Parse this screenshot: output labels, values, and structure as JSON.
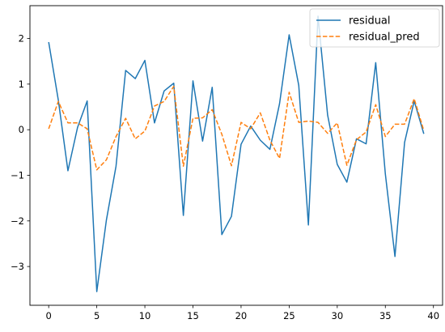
{
  "chart_data": {
    "type": "line",
    "title": "",
    "xlabel": "",
    "ylabel": "",
    "xlim": [
      -1.95,
      40.95
    ],
    "ylim": [
      -3.85,
      2.72
    ],
    "xticks": [
      0,
      5,
      10,
      15,
      20,
      25,
      30,
      35,
      40
    ],
    "yticks": [
      -3,
      -2,
      -1,
      0,
      1,
      2
    ],
    "ytick_labels": [
      "−3",
      "−2",
      "−1",
      "0",
      "1",
      "2"
    ],
    "grid": false,
    "legend_position": "top-right",
    "x": [
      0,
      1,
      2,
      3,
      4,
      5,
      6,
      7,
      8,
      9,
      10,
      11,
      12,
      13,
      14,
      15,
      16,
      17,
      18,
      19,
      20,
      21,
      22,
      23,
      24,
      25,
      26,
      27,
      28,
      29,
      30,
      31,
      32,
      33,
      34,
      35,
      36,
      37,
      38,
      39
    ],
    "series": [
      {
        "name": "residual",
        "color": "#1f77b4",
        "style": "solid",
        "values": [
          1.92,
          0.65,
          -0.9,
          0.05,
          0.63,
          -3.55,
          -1.98,
          -0.8,
          1.3,
          1.12,
          1.52,
          0.15,
          0.85,
          1.02,
          -1.88,
          1.07,
          -0.25,
          0.93,
          -2.3,
          -1.9,
          -0.32,
          0.08,
          -0.23,
          -0.43,
          0.57,
          2.08,
          0.97,
          -2.09,
          2.49,
          0.32,
          -0.76,
          -1.15,
          -0.2,
          -0.31,
          1.47,
          -0.97,
          -2.78,
          -0.28,
          0.63,
          -0.09
        ]
      },
      {
        "name": "residual_pred",
        "color": "#ff7f0e",
        "style": "dashed",
        "values": [
          0.02,
          0.62,
          0.15,
          0.15,
          0.02,
          -0.88,
          -0.66,
          -0.15,
          0.25,
          -0.2,
          -0.03,
          0.52,
          0.62,
          0.95,
          -0.8,
          0.25,
          0.26,
          0.44,
          -0.1,
          -0.79,
          0.16,
          0.02,
          0.37,
          -0.23,
          -0.63,
          0.82,
          0.16,
          0.19,
          0.16,
          -0.08,
          0.15,
          -0.78,
          -0.22,
          -0.05,
          0.55,
          -0.15,
          0.12,
          0.12,
          0.68,
          -0.02
        ]
      }
    ]
  }
}
